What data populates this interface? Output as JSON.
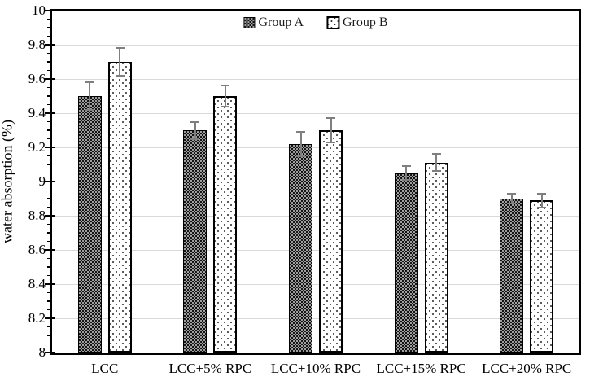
{
  "chart_data": {
    "type": "bar",
    "title": "",
    "xlabel": "",
    "ylabel": "water absorption (%)",
    "ylim": [
      8,
      10
    ],
    "ytick_step": 0.2,
    "minor_tick_step": 0.05,
    "grid": true,
    "legend_position": "top-center",
    "categories": [
      "LCC",
      "LCC+5% RPC",
      "LCC+10% RPC",
      "LCC+15% RPC",
      "LCC+20% RPC"
    ],
    "series": [
      {
        "name": "Group A",
        "pattern": "checker",
        "values": [
          9.5,
          9.3,
          9.22,
          9.05,
          8.9
        ],
        "errors": [
          0.08,
          0.05,
          0.07,
          0.04,
          0.03
        ]
      },
      {
        "name": "Group B",
        "pattern": "dots",
        "values": [
          9.7,
          9.5,
          9.3,
          9.11,
          8.89
        ],
        "errors": [
          0.08,
          0.06,
          0.07,
          0.05,
          0.04
        ]
      }
    ],
    "colors": {
      "axis": "#000000",
      "gridline": "#d9d9d9",
      "error_bar": "#7f7f7f",
      "bar_checker_dark": "#141414",
      "bar_checker_light": "#9e9e9e",
      "bar_dots_dot": "#333333",
      "bar_dots_bg": "#ffffff"
    }
  }
}
